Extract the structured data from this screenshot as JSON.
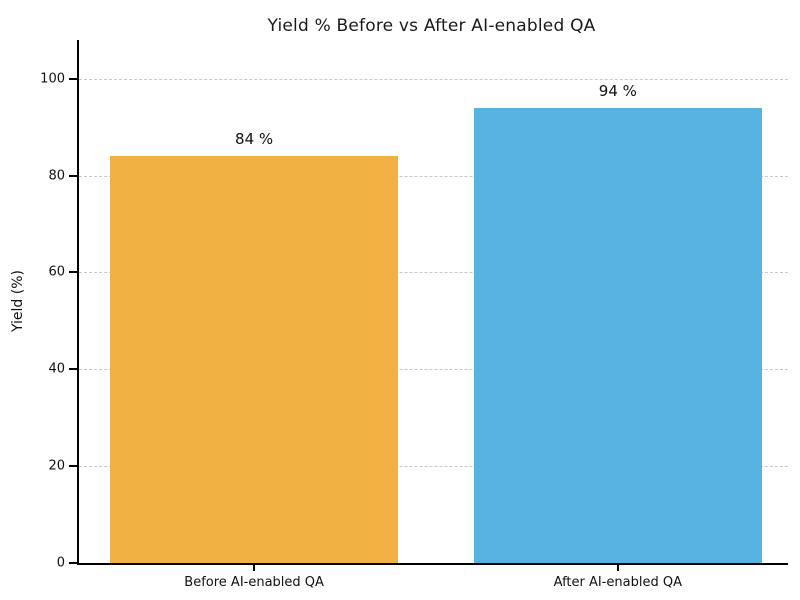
{
  "chart_data": {
    "type": "bar",
    "title": "Yield % Before vs After AI-enabled QA",
    "categories": [
      "Before AI-enabled QA",
      "After AI-enabled QA"
    ],
    "values": [
      84,
      94
    ],
    "value_labels": [
      "84 %",
      "94 %"
    ],
    "bar_colors": [
      "#F2B243",
      "#56B3E2"
    ],
    "xlabel": "",
    "ylabel": "Yield (%)",
    "yticks": [
      0,
      20,
      40,
      60,
      80,
      100
    ],
    "ylim": [
      0,
      108
    ],
    "grid": "horizontal-dashed",
    "gridline_color": "#c9c9c9",
    "spine_color": "#000000",
    "legend": "none"
  }
}
